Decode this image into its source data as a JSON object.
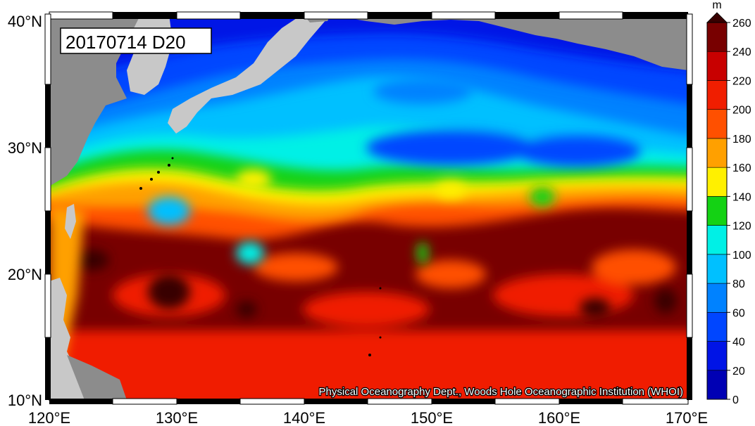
{
  "map": {
    "title": "20170714 D20",
    "credit": "Physical Oceanography Dept., Woods Hole Oceanographic Institution (WHOI)",
    "lon_ticks": [
      "120°E",
      "130°E",
      "140°E",
      "150°E",
      "160°E",
      "170°E"
    ],
    "lat_ticks": [
      "10°N",
      "20°N",
      "30°N",
      "40°N"
    ],
    "extent": {
      "lon": [
        120,
        170
      ],
      "lat": [
        10,
        40
      ]
    },
    "land_color": "#8c8c8c",
    "land_light_color": "#c8c8c8"
  },
  "colorbar": {
    "unit": "m",
    "levels": [
      "0",
      "20",
      "40",
      "60",
      "80",
      "100",
      "120",
      "140",
      "160",
      "180",
      "200",
      "220",
      "240",
      "260"
    ],
    "colors": [
      "#0000b4",
      "#0014e6",
      "#0046ff",
      "#0082ff",
      "#00c0ff",
      "#00f0e6",
      "#14d214",
      "#fff000",
      "#ffa000",
      "#ff5000",
      "#f01e00",
      "#c80000",
      "#780000"
    ]
  }
}
